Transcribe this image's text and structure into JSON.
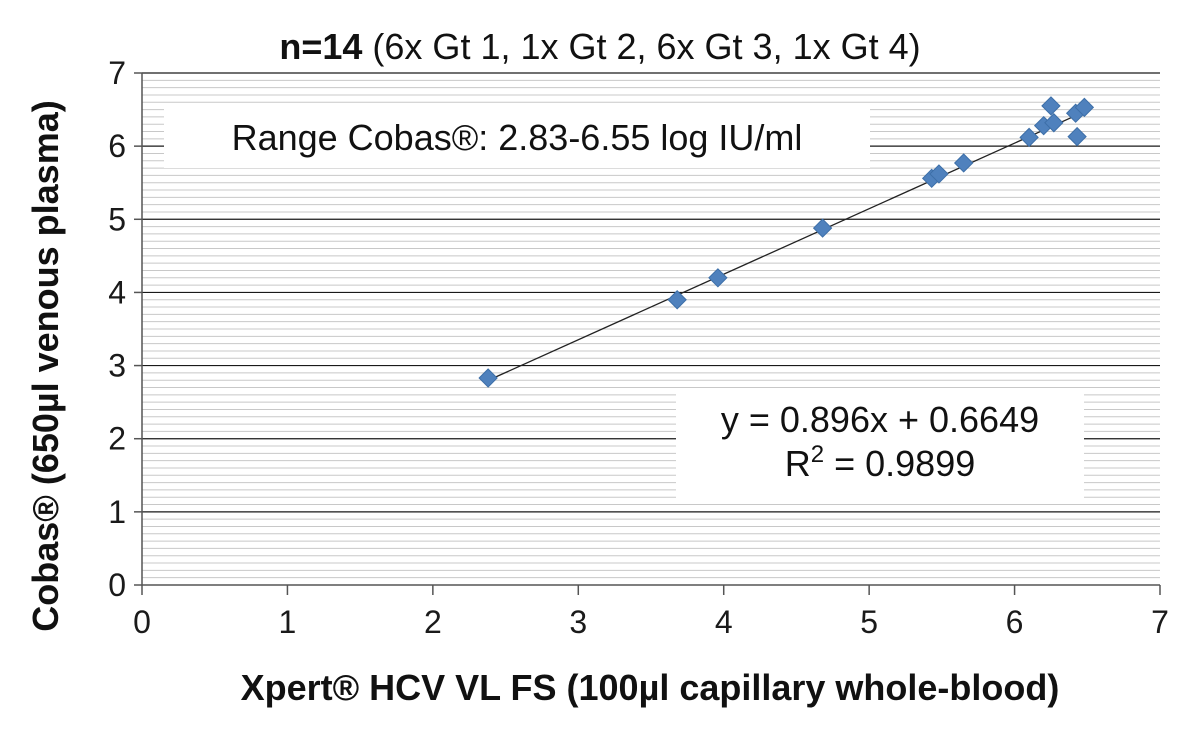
{
  "chart_data": {
    "type": "scatter",
    "title_bold": "n=14",
    "title_rest": " (6x Gt 1, 1x Gt 2, 6x Gt 3, 1x Gt 4)",
    "xlabel": "Xpert® HCV VL FS (100µl capillary whole-blood)",
    "ylabel": "Cobas® (650µl venous plasma)",
    "xlim": [
      0,
      7
    ],
    "ylim": [
      0,
      7
    ],
    "xticks": [
      "0",
      "1",
      "2",
      "3",
      "4",
      "5",
      "6",
      "7"
    ],
    "yticks": [
      "0",
      "1",
      "2",
      "3",
      "4",
      "5",
      "6",
      "7"
    ],
    "grid": "major and minor horizontal",
    "marker": "diamond",
    "point_color": "#4f81bd",
    "series": [
      {
        "x": [
          2.38,
          3.68,
          3.96,
          4.68,
          5.43,
          5.48,
          5.65,
          6.1,
          6.2,
          6.27,
          6.25,
          6.42,
          6.43,
          6.48
        ],
        "y": [
          2.83,
          3.9,
          4.2,
          4.88,
          5.56,
          5.62,
          5.77,
          6.12,
          6.28,
          6.32,
          6.55,
          6.45,
          6.13,
          6.53
        ]
      }
    ],
    "trendline": {
      "slope": 0.896,
      "intercept": 0.6649,
      "x_range": [
        2.38,
        6.48
      ]
    },
    "annotations": {
      "range_text": "Range Cobas®: 2.83-6.55 log IU/ml",
      "equation_text": "y = 0.896x + 0.6649",
      "r2_prefix": "R",
      "r2_sup": "2",
      "r2_suffix": " = 0.9899"
    }
  }
}
